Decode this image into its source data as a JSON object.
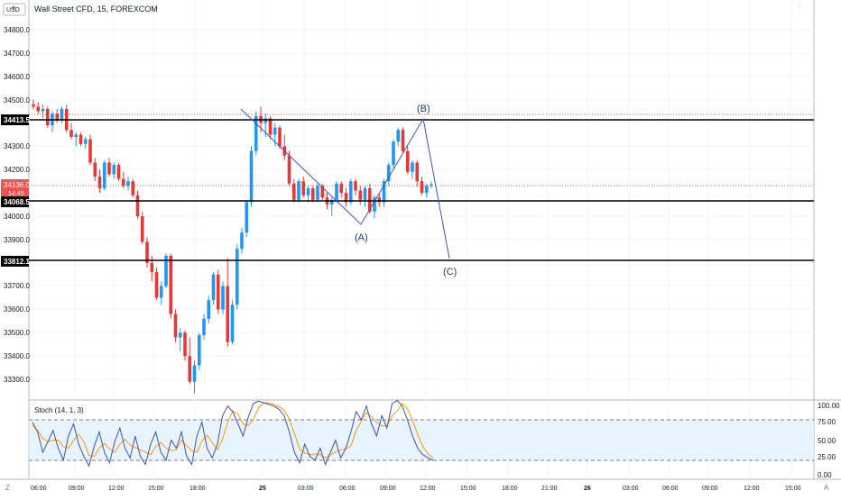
{
  "header": {
    "currency": "USD",
    "currency_arrow": "∨",
    "title": "Wall Street CFD, 15, FOREXCOM"
  },
  "price_axis": {
    "ticks": [
      "34800.0",
      "34700.0",
      "34600.0",
      "34500.0",
      "34300.0",
      "34200.0",
      "34000.0",
      "33900.0",
      "33700.0",
      "33600.0",
      "33500.0",
      "33400.0",
      "33300.0"
    ],
    "badges": [
      {
        "text": "34413.5",
        "style": "black"
      },
      {
        "text": "34136.0",
        "sub": "14:45",
        "style": "red"
      },
      {
        "text": "34068.5",
        "style": "black"
      },
      {
        "text": "33812.1",
        "style": "black"
      }
    ]
  },
  "stoch": {
    "title": "Stoch (14, 1, 3)",
    "ticks": [
      "100.00",
      "75.00",
      "50.00",
      "25.00",
      "0.00"
    ]
  },
  "time_axis": {
    "labels": [
      "06:00",
      "09:00",
      "12:00",
      "15:00",
      "18:00",
      "25",
      "03:00",
      "06:00",
      "09:00",
      "12:00",
      "15:00",
      "18:00",
      "21:00",
      "26",
      "03:00",
      "06:00",
      "09:00",
      "12:00",
      "15:00"
    ],
    "left_button": "Z",
    "right_button": "A"
  },
  "annotations": {
    "wave_a": "(A)",
    "wave_b": "(B)",
    "wave_c": "(C)"
  },
  "colors": {
    "up": "#2196f3",
    "down": "#e53935",
    "stoch_k": "#3f51b5",
    "stoch_d": "#ff9800",
    "wave_line": "#3f51b5",
    "band": "#e3f2fd"
  },
  "chart_data": {
    "type": "candlestick",
    "title": "Wall Street CFD, 15, FOREXCOM",
    "ylim": [
      33200,
      34880
    ],
    "levels": [
      34413.5,
      34068.5,
      33812.1
    ],
    "last_price": 34136.0,
    "bar_countdown": "14:45",
    "candles": [
      [
        34480,
        34500,
        34460,
        34470
      ],
      [
        34470,
        34490,
        34440,
        34450
      ],
      [
        34450,
        34480,
        34420,
        34460
      ],
      [
        34460,
        34470,
        34380,
        34390
      ],
      [
        34390,
        34450,
        34360,
        34440
      ],
      [
        34440,
        34460,
        34400,
        34410
      ],
      [
        34410,
        34470,
        34400,
        34460
      ],
      [
        34460,
        34480,
        34360,
        34370
      ],
      [
        34370,
        34400,
        34330,
        34340
      ],
      [
        34340,
        34360,
        34300,
        34350
      ],
      [
        34350,
        34360,
        34300,
        34310
      ],
      [
        34310,
        34340,
        34290,
        34330
      ],
      [
        34330,
        34350,
        34220,
        34230
      ],
      [
        34230,
        34250,
        34150,
        34170
      ],
      [
        34170,
        34200,
        34100,
        34120
      ],
      [
        34120,
        34240,
        34110,
        34230
      ],
      [
        34230,
        34250,
        34170,
        34180
      ],
      [
        34180,
        34230,
        34160,
        34220
      ],
      [
        34220,
        34230,
        34150,
        34160
      ],
      [
        34160,
        34190,
        34120,
        34130
      ],
      [
        34130,
        34170,
        34110,
        34150
      ],
      [
        34150,
        34160,
        34080,
        34090
      ],
      [
        34090,
        34110,
        33990,
        34000
      ],
      [
        34000,
        34020,
        33880,
        33890
      ],
      [
        33890,
        33910,
        33780,
        33800
      ],
      [
        33800,
        33830,
        33720,
        33760
      ],
      [
        33760,
        33780,
        33640,
        33650
      ],
      [
        33650,
        33720,
        33620,
        33700
      ],
      [
        33700,
        33840,
        33690,
        33830
      ],
      [
        33830,
        33840,
        33560,
        33580
      ],
      [
        33580,
        33600,
        33460,
        33480
      ],
      [
        33480,
        33520,
        33420,
        33500
      ],
      [
        33500,
        33510,
        33380,
        33400
      ],
      [
        33400,
        33480,
        33280,
        33290
      ],
      [
        33290,
        33380,
        33240,
        33360
      ],
      [
        33360,
        33500,
        33340,
        33490
      ],
      [
        33490,
        33580,
        33470,
        33560
      ],
      [
        33560,
        33660,
        33540,
        33640
      ],
      [
        33640,
        33760,
        33620,
        33750
      ],
      [
        33750,
        33770,
        33580,
        33600
      ],
      [
        33600,
        33720,
        33580,
        33700
      ],
      [
        33700,
        33820,
        33440,
        33460
      ],
      [
        33460,
        33640,
        33450,
        33620
      ],
      [
        33620,
        33880,
        33600,
        33860
      ],
      [
        33860,
        33950,
        33840,
        33930
      ],
      [
        33930,
        34070,
        33910,
        34060
      ],
      [
        34060,
        34300,
        34040,
        34280
      ],
      [
        34280,
        34450,
        34260,
        34430
      ],
      [
        34430,
        34470,
        34360,
        34400
      ],
      [
        34400,
        34440,
        34340,
        34420
      ],
      [
        34420,
        34430,
        34330,
        34350
      ],
      [
        34350,
        34400,
        34300,
        34380
      ],
      [
        34380,
        34390,
        34290,
        34300
      ],
      [
        34300,
        34350,
        34240,
        34260
      ],
      [
        34260,
        34280,
        34130,
        34140
      ],
      [
        34140,
        34160,
        34060,
        34070
      ],
      [
        34070,
        34160,
        34060,
        34150
      ],
      [
        34150,
        34170,
        34080,
        34090
      ],
      [
        34090,
        34130,
        34060,
        34120
      ],
      [
        34120,
        34130,
        34060,
        34070
      ],
      [
        34070,
        34140,
        34060,
        34130
      ],
      [
        34130,
        34140,
        34070,
        34080
      ],
      [
        34080,
        34100,
        34030,
        34050
      ],
      [
        34050,
        34080,
        34000,
        34070
      ],
      [
        34070,
        34150,
        34060,
        34140
      ],
      [
        34140,
        34150,
        34080,
        34100
      ],
      [
        34100,
        34120,
        34040,
        34060
      ],
      [
        34060,
        34160,
        34050,
        34150
      ],
      [
        34150,
        34160,
        34090,
        34110
      ],
      [
        34110,
        34130,
        34050,
        34070
      ],
      [
        34070,
        34130,
        34040,
        34120
      ],
      [
        34120,
        34140,
        34010,
        34020
      ],
      [
        34020,
        34090,
        33990,
        34080
      ],
      [
        34080,
        34100,
        34040,
        34060
      ],
      [
        34060,
        34160,
        34040,
        34150
      ],
      [
        34150,
        34230,
        34130,
        34220
      ],
      [
        34220,
        34330,
        34200,
        34320
      ],
      [
        34320,
        34380,
        34300,
        34370
      ],
      [
        34370,
        34380,
        34270,
        34280
      ],
      [
        34280,
        34300,
        34180,
        34190
      ],
      [
        34190,
        34240,
        34160,
        34230
      ],
      [
        34230,
        34240,
        34130,
        34150
      ],
      [
        34150,
        34170,
        34090,
        34100
      ],
      [
        34100,
        34140,
        34080,
        34130
      ],
      [
        34130,
        34150,
        34120,
        34136
      ]
    ],
    "stoch_k": [
      72,
      60,
      35,
      48,
      62,
      40,
      25,
      55,
      70,
      45,
      30,
      18,
      42,
      60,
      35,
      22,
      48,
      65,
      40,
      28,
      55,
      30,
      20,
      45,
      60,
      35,
      25,
      50,
      40,
      60,
      30,
      20,
      55,
      72,
      40,
      28,
      45,
      80,
      92,
      85,
      70,
      55,
      78,
      95,
      98,
      96,
      94,
      92,
      88,
      80,
      60,
      35,
      22,
      45,
      30,
      25,
      40,
      20,
      35,
      50,
      28,
      40,
      60,
      85,
      75,
      92,
      70,
      55,
      80,
      65,
      95,
      99,
      92,
      75,
      55,
      40,
      32,
      28,
      25
    ],
    "stoch_d": [
      68,
      62,
      52,
      48,
      50,
      50,
      42,
      40,
      50,
      57,
      48,
      31,
      30,
      40,
      46,
      39,
      35,
      45,
      51,
      44,
      41,
      38,
      35,
      32,
      42,
      47,
      40,
      37,
      38,
      50,
      43,
      37,
      35,
      49,
      56,
      47,
      38,
      51,
      72,
      86,
      82,
      70,
      68,
      76,
      90,
      96,
      96,
      94,
      91,
      87,
      76,
      58,
      39,
      34,
      32,
      33,
      32,
      28,
      32,
      35,
      38,
      39,
      43,
      62,
      73,
      84,
      79,
      72,
      68,
      67,
      80,
      86,
      95,
      89,
      74,
      57,
      42,
      33,
      28
    ]
  }
}
